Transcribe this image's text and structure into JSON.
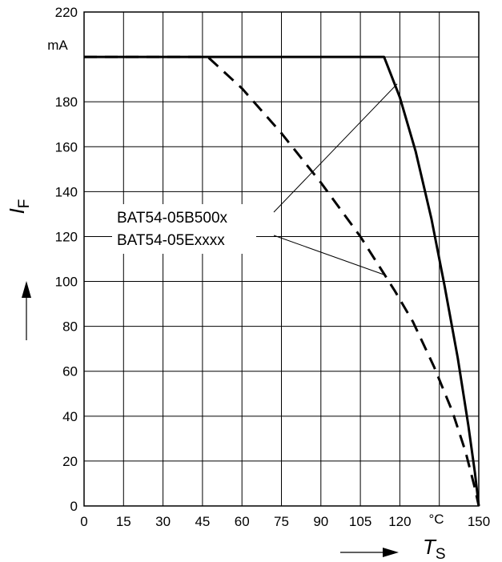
{
  "chart_data": {
    "type": "line",
    "xlabel": "T",
    "xlabel_sub": "S",
    "ylabel": "I",
    "ylabel_sub": "F",
    "xunit": "°C",
    "yunit": "mA",
    "xlim": [
      0,
      150
    ],
    "ylim": [
      0,
      220
    ],
    "grid": true,
    "x_ticks": [
      0,
      15,
      30,
      45,
      60,
      75,
      90,
      105,
      120,
      150
    ],
    "y_ticks": [
      0,
      20,
      40,
      60,
      80,
      100,
      120,
      140,
      160,
      180,
      220
    ],
    "series": [
      {
        "name": "BAT54-05B500x",
        "style": "solid",
        "points": [
          [
            0,
            200
          ],
          [
            114,
            200
          ],
          [
            120,
            182
          ],
          [
            126,
            158
          ],
          [
            132,
            128
          ],
          [
            137,
            98
          ],
          [
            142,
            66
          ],
          [
            146,
            36
          ],
          [
            148.5,
            15
          ],
          [
            150,
            0
          ]
        ]
      },
      {
        "name": "BAT54-05Exxxx",
        "style": "dashed",
        "points": [
          [
            0,
            200
          ],
          [
            47,
            200
          ],
          [
            60,
            186
          ],
          [
            75,
            166
          ],
          [
            90,
            144
          ],
          [
            105,
            120
          ],
          [
            118,
            96
          ],
          [
            125,
            82
          ],
          [
            133,
            62
          ],
          [
            140,
            42
          ],
          [
            145,
            24
          ],
          [
            148.5,
            8
          ],
          [
            150,
            0
          ]
        ]
      }
    ]
  }
}
